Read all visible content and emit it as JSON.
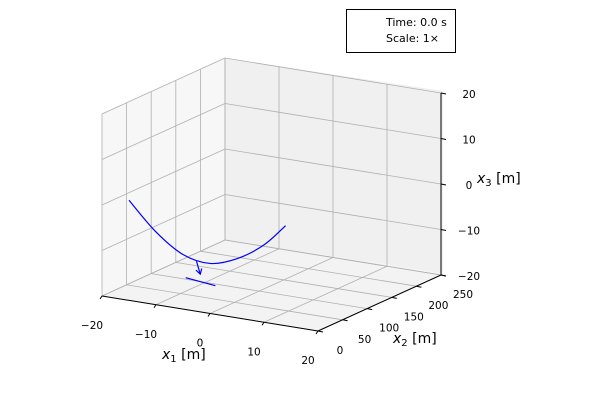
{
  "chart_data": {
    "type": "line3d",
    "title": "",
    "info_box": {
      "time_label": "Time: 0.0 s",
      "scale_label": "Scale: 1×"
    },
    "axes": {
      "x1": {
        "label": "x",
        "sub": "1",
        "unit": " [m]",
        "range": [
          -20,
          20
        ],
        "ticks": [
          "−20",
          "−10",
          "0",
          "10",
          "20"
        ]
      },
      "x2": {
        "label": "x",
        "sub": "2",
        "unit": " [m]",
        "range": [
          0,
          250
        ],
        "ticks": [
          "0",
          "50",
          "100",
          "150",
          "200",
          "250"
        ]
      },
      "x3": {
        "label": "x",
        "sub": "3",
        "unit": " [m]",
        "range": [
          -20,
          20
        ],
        "ticks": [
          "−20",
          "−10",
          "0",
          "10",
          "20"
        ]
      }
    },
    "grid": true,
    "series": [
      {
        "color": "#0000ff",
        "style": "line",
        "points": [
          [
            -15,
            0,
            2
          ],
          [
            -10,
            0,
            -4
          ],
          [
            -5,
            0,
            -8
          ],
          [
            0,
            0,
            -9
          ],
          [
            5,
            0,
            -7
          ],
          [
            10,
            0,
            -3
          ],
          [
            14,
            0,
            2
          ]
        ]
      },
      {
        "color": "#0000ff",
        "style": "segment",
        "points": [
          [
            -4.5,
            0,
            -13
          ],
          [
            1,
            0,
            -13.7
          ]
        ]
      },
      {
        "color": "#0000ff",
        "style": "arrow",
        "points": [
          [
            -2.5,
            0,
            -9
          ],
          [
            -1.8,
            0,
            -11.7
          ]
        ]
      }
    ]
  }
}
